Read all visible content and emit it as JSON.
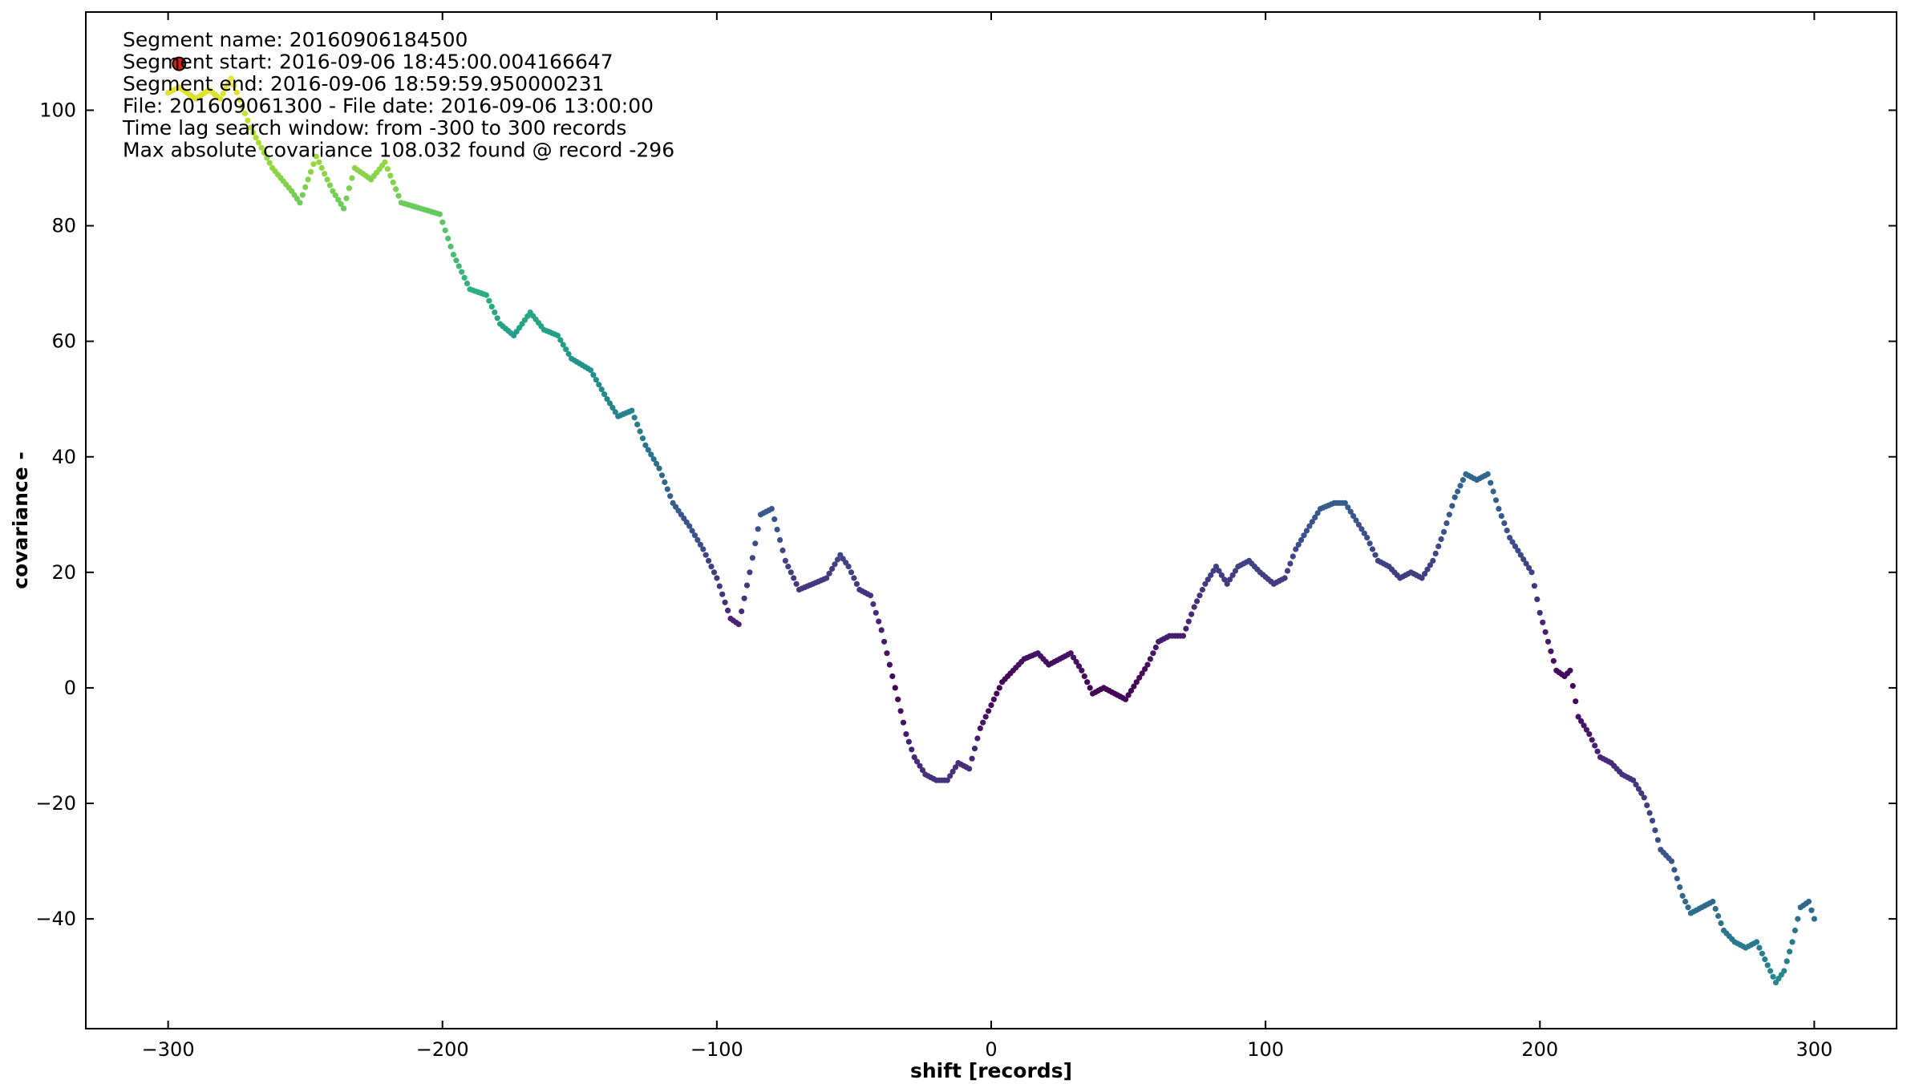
{
  "chart_data": {
    "type": "scatter",
    "xlabel": "shift [records]",
    "ylabel": "covariance  -",
    "xlim": [
      -330,
      330
    ],
    "ylim": [
      -59,
      117
    ],
    "x_ticks": [
      -300,
      -200,
      -100,
      0,
      100,
      200,
      300
    ],
    "y_ticks": [
      -40,
      -20,
      0,
      20,
      40,
      60,
      80,
      100
    ],
    "x_tick_labels": [
      "−300",
      "−200",
      "−100",
      "0",
      "100",
      "200",
      "300"
    ],
    "y_tick_labels": [
      "−40",
      "−20",
      "0",
      "20",
      "40",
      "60",
      "80",
      "100"
    ],
    "grid": false,
    "colormap": "viridis (by |covariance|)",
    "annotation_lines": [
      "Segment name: 20160906184500",
      "Segment start: 2016-09-06 18:45:00.004166647",
      "Segment end: 2016-09-06 18:59:59.950000231",
      "File: 201609061300 - File date: 2016-09-06 13:00:00",
      "Time lag search window: from -300 to 300 records",
      "Max absolute covariance 108.032 found @ record -296"
    ],
    "max_marker": {
      "x": -296,
      "y": 108.032,
      "color": "#e8180e"
    },
    "curve_keypoints": [
      [
        -300,
        103
      ],
      [
        -296,
        104
      ],
      [
        -290,
        102
      ],
      [
        -285,
        103.5
      ],
      [
        -281,
        102
      ],
      [
        -277,
        105.5
      ],
      [
        -270,
        97
      ],
      [
        -262,
        90
      ],
      [
        -255,
        86
      ],
      [
        -252,
        84
      ],
      [
        -246,
        92
      ],
      [
        -240,
        86
      ],
      [
        -236,
        83
      ],
      [
        -232,
        90
      ],
      [
        -226,
        88
      ],
      [
        -221,
        91
      ],
      [
        -215,
        84
      ],
      [
        -208,
        83
      ],
      [
        -201,
        82
      ],
      [
        -196,
        75
      ],
      [
        -190,
        69
      ],
      [
        -184,
        68
      ],
      [
        -179,
        63
      ],
      [
        -174,
        61
      ],
      [
        -168,
        65
      ],
      [
        -163,
        62
      ],
      [
        -158,
        61
      ],
      [
        -153,
        57
      ],
      [
        -146,
        55
      ],
      [
        -140,
        50
      ],
      [
        -136,
        47
      ],
      [
        -131,
        48
      ],
      [
        -126,
        42
      ],
      [
        -121,
        38
      ],
      [
        -116,
        32
      ],
      [
        -110,
        28
      ],
      [
        -105,
        24
      ],
      [
        -100,
        19
      ],
      [
        -95,
        12
      ],
      [
        -92,
        11
      ],
      [
        -88,
        20
      ],
      [
        -84,
        30
      ],
      [
        -80,
        31
      ],
      [
        -75,
        22
      ],
      [
        -70,
        17
      ],
      [
        -65,
        18
      ],
      [
        -60,
        19
      ],
      [
        -55,
        23
      ],
      [
        -52,
        21
      ],
      [
        -48,
        17
      ],
      [
        -44,
        16
      ],
      [
        -40,
        10
      ],
      [
        -35,
        0
      ],
      [
        -31,
        -8
      ],
      [
        -28,
        -12
      ],
      [
        -24,
        -15
      ],
      [
        -20,
        -16
      ],
      [
        -16,
        -16
      ],
      [
        -12,
        -13
      ],
      [
        -8,
        -14
      ],
      [
        -4,
        -7
      ],
      [
        0,
        -3
      ],
      [
        4,
        1
      ],
      [
        8,
        3
      ],
      [
        12,
        5
      ],
      [
        17,
        6
      ],
      [
        21,
        4
      ],
      [
        25,
        5
      ],
      [
        29,
        6
      ],
      [
        33,
        3
      ],
      [
        37,
        -1
      ],
      [
        41,
        0
      ],
      [
        45,
        -1
      ],
      [
        49,
        -2
      ],
      [
        53,
        1
      ],
      [
        57,
        4
      ],
      [
        61,
        8
      ],
      [
        65,
        9
      ],
      [
        70,
        9
      ],
      [
        74,
        14
      ],
      [
        78,
        18
      ],
      [
        82,
        21
      ],
      [
        86,
        18
      ],
      [
        90,
        21
      ],
      [
        94,
        22
      ],
      [
        98,
        20
      ],
      [
        103,
        18
      ],
      [
        107,
        19
      ],
      [
        111,
        24
      ],
      [
        116,
        28
      ],
      [
        120,
        31
      ],
      [
        125,
        32
      ],
      [
        129,
        32
      ],
      [
        133,
        29
      ],
      [
        137,
        26
      ],
      [
        141,
        22
      ],
      [
        145,
        21
      ],
      [
        149,
        19
      ],
      [
        153,
        20
      ],
      [
        157,
        19
      ],
      [
        161,
        22
      ],
      [
        165,
        27
      ],
      [
        169,
        33
      ],
      [
        173,
        37
      ],
      [
        177,
        36
      ],
      [
        181,
        37
      ],
      [
        185,
        31
      ],
      [
        189,
        26
      ],
      [
        193,
        23
      ],
      [
        197,
        20
      ],
      [
        200,
        13
      ],
      [
        203,
        8
      ],
      [
        206,
        3
      ],
      [
        209,
        2
      ],
      [
        211,
        3
      ],
      [
        214,
        -5
      ],
      [
        218,
        -8
      ],
      [
        222,
        -12
      ],
      [
        226,
        -13
      ],
      [
        230,
        -15
      ],
      [
        234,
        -16
      ],
      [
        238,
        -19
      ],
      [
        241,
        -23
      ],
      [
        244,
        -28
      ],
      [
        248,
        -30
      ],
      [
        252,
        -36
      ],
      [
        255,
        -39
      ],
      [
        259,
        -38
      ],
      [
        263,
        -37
      ],
      [
        267,
        -42
      ],
      [
        271,
        -44
      ],
      [
        275,
        -45
      ],
      [
        279,
        -44
      ],
      [
        283,
        -48
      ],
      [
        286,
        -51
      ],
      [
        289,
        -49
      ],
      [
        292,
        -44
      ],
      [
        295,
        -38
      ],
      [
        298,
        -37
      ],
      [
        300,
        -40
      ]
    ]
  }
}
